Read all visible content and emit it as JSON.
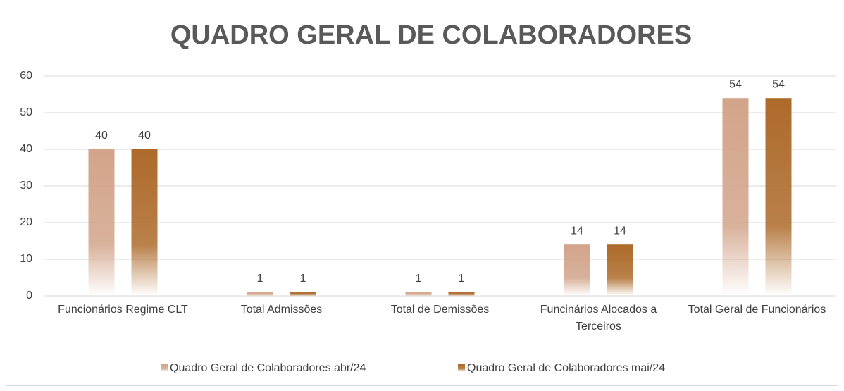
{
  "chart_data": {
    "type": "bar",
    "title": "QUADRO GERAL DE COLABORADORES",
    "categories": [
      "Funcionários Regime CLT",
      "Total Admissões",
      "Total de Demissões",
      "Funcinários Alocados a Terceiros",
      "Total Geral de Funcionários"
    ],
    "series": [
      {
        "name": "Quadro Geral de Colaboradores abr/24",
        "color": "#d2a48a",
        "values": [
          40,
          1,
          1,
          14,
          54
        ]
      },
      {
        "name": "Quadro Geral de Colaboradores mai/24",
        "color": "#ad6a2a",
        "values": [
          40,
          1,
          1,
          14,
          54
        ]
      }
    ],
    "ylim": [
      0,
      60
    ],
    "yticks": [
      0,
      10,
      20,
      30,
      40,
      50,
      60
    ],
    "grid": true,
    "legend": "bottom"
  }
}
